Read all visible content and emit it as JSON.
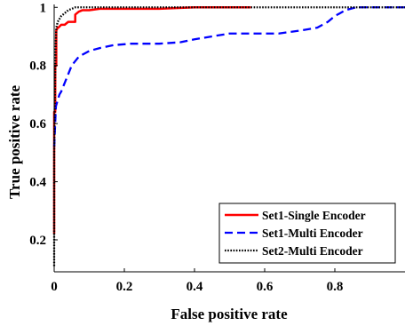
{
  "chart_data": {
    "type": "line",
    "title": "",
    "xlabel": "False positive rate",
    "ylabel": "True positive rate",
    "xlim": [
      0,
      1
    ],
    "ylim": [
      0.09,
      1.01
    ],
    "x_ticks": [
      0,
      0.2,
      0.4,
      0.6,
      0.8
    ],
    "y_ticks": [
      0.2,
      0.4,
      0.6,
      0.8,
      1
    ],
    "x_tick_labels": [
      "0",
      "0.2",
      "0.4",
      "0.6",
      "0.8"
    ],
    "y_tick_labels": [
      "0.2",
      "0.4",
      "0.6",
      "0.8",
      "1"
    ],
    "grid": false,
    "legend_position": "bottom-right",
    "series": [
      {
        "name": "Set1-Single Encoder",
        "color": "#ff0000",
        "style": "solid",
        "x": [
          0,
          0,
          0.003,
          0.003,
          0.006,
          0.006,
          0.01,
          0.012,
          0.02,
          0.03,
          0.04,
          0.05,
          0.06,
          0.06,
          0.065,
          0.07,
          0.08,
          0.1,
          0.13,
          0.2,
          0.3,
          0.4,
          0.5,
          0.56
        ],
        "y": [
          0.22,
          0.64,
          0.64,
          0.8,
          0.8,
          0.92,
          0.93,
          0.93,
          0.94,
          0.94,
          0.95,
          0.95,
          0.95,
          0.975,
          0.98,
          0.985,
          0.99,
          0.99,
          0.995,
          0.995,
          0.995,
          1.0,
          1.0,
          1.0
        ]
      },
      {
        "name": "Set1-Multi Encoder",
        "color": "#0000ff",
        "style": "dashed",
        "x": [
          0,
          0.005,
          0.01,
          0.015,
          0.02,
          0.03,
          0.04,
          0.05,
          0.07,
          0.1,
          0.13,
          0.17,
          0.22,
          0.3,
          0.36,
          0.4,
          0.45,
          0.5,
          0.58,
          0.64,
          0.7,
          0.75,
          0.78,
          0.8,
          0.83,
          0.86,
          0.9,
          1.0
        ],
        "y": [
          0.52,
          0.66,
          0.68,
          0.7,
          0.71,
          0.74,
          0.77,
          0.8,
          0.83,
          0.85,
          0.86,
          0.87,
          0.875,
          0.875,
          0.88,
          0.89,
          0.9,
          0.91,
          0.91,
          0.91,
          0.92,
          0.93,
          0.95,
          0.97,
          0.99,
          1.0,
          1.0,
          1.0
        ]
      },
      {
        "name": "Set2-Multi Encoder",
        "color": "#000000",
        "style": "dotted",
        "x": [
          0,
          0,
          0.002,
          0.004,
          0.006,
          0.01,
          0.02,
          0.03,
          0.04,
          0.06,
          0.08,
          0.1,
          0.2,
          0.4,
          0.6,
          0.8,
          1.0
        ],
        "y": [
          0.11,
          0.5,
          0.7,
          0.85,
          0.93,
          0.95,
          0.97,
          0.98,
          0.99,
          1.0,
          1.0,
          1.0,
          1.0,
          1.0,
          1.0,
          1.0,
          1.0
        ]
      }
    ]
  }
}
